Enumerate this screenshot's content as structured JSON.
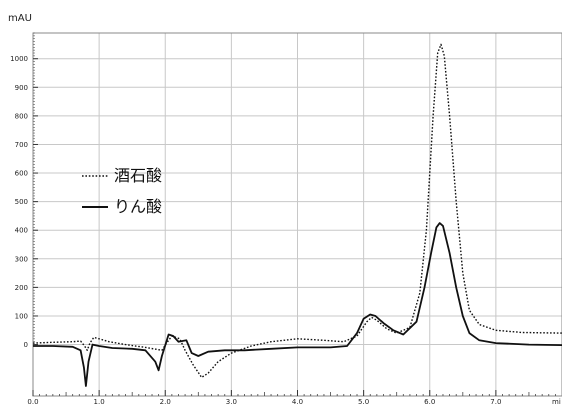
{
  "chart_data": {
    "type": "line",
    "title": "",
    "xlabel": "mi",
    "ylabel": "mAU",
    "xlim": [
      0,
      8
    ],
    "ylim": [
      -180,
      1090
    ],
    "x_ticks": [
      "0.0",
      "1.0",
      "2.0",
      "3.0",
      "4.0",
      "5.0",
      "6.0",
      "7.0"
    ],
    "y_ticks": [
      "0",
      "100",
      "200",
      "300",
      "400",
      "500",
      "600",
      "700",
      "800",
      "900",
      "1000"
    ],
    "grid": true,
    "legend_position": "left-middle",
    "series": [
      {
        "name": "酒石酸",
        "style": "dotted",
        "color": "#111111",
        "points": [
          [
            0,
            5
          ],
          [
            0.3,
            8
          ],
          [
            0.6,
            10
          ],
          [
            0.72,
            12
          ],
          [
            0.78,
            -5
          ],
          [
            0.82,
            -20
          ],
          [
            0.86,
            5
          ],
          [
            0.92,
            25
          ],
          [
            1.0,
            20
          ],
          [
            1.15,
            10
          ],
          [
            1.4,
            0
          ],
          [
            1.7,
            -10
          ],
          [
            1.95,
            -20
          ],
          [
            2.02,
            5
          ],
          [
            2.1,
            30
          ],
          [
            2.22,
            20
          ],
          [
            2.3,
            -20
          ],
          [
            2.42,
            -70
          ],
          [
            2.55,
            -115
          ],
          [
            2.65,
            -100
          ],
          [
            2.8,
            -60
          ],
          [
            3.0,
            -30
          ],
          [
            3.3,
            -5
          ],
          [
            3.6,
            10
          ],
          [
            4.0,
            20
          ],
          [
            4.4,
            15
          ],
          [
            4.7,
            10
          ],
          [
            4.9,
            30
          ],
          [
            5.05,
            80
          ],
          [
            5.12,
            95
          ],
          [
            5.2,
            85
          ],
          [
            5.35,
            55
          ],
          [
            5.5,
            40
          ],
          [
            5.7,
            60
          ],
          [
            5.85,
            180
          ],
          [
            5.95,
            400
          ],
          [
            6.05,
            800
          ],
          [
            6.12,
            1020
          ],
          [
            6.17,
            1050
          ],
          [
            6.22,
            1010
          ],
          [
            6.3,
            800
          ],
          [
            6.4,
            500
          ],
          [
            6.5,
            250
          ],
          [
            6.6,
            120
          ],
          [
            6.75,
            70
          ],
          [
            7.0,
            50
          ],
          [
            7.4,
            42
          ],
          [
            8.0,
            40
          ]
        ]
      },
      {
        "name": "りん酸",
        "style": "solid",
        "color": "#111111",
        "points": [
          [
            0,
            -5
          ],
          [
            0.3,
            -5
          ],
          [
            0.6,
            -8
          ],
          [
            0.72,
            -20
          ],
          [
            0.77,
            -80
          ],
          [
            0.8,
            -145
          ],
          [
            0.84,
            -60
          ],
          [
            0.9,
            0
          ],
          [
            1.0,
            -5
          ],
          [
            1.2,
            -12
          ],
          [
            1.5,
            -15
          ],
          [
            1.7,
            -20
          ],
          [
            1.85,
            -60
          ],
          [
            1.9,
            -90
          ],
          [
            1.95,
            -40
          ],
          [
            2.05,
            35
          ],
          [
            2.12,
            30
          ],
          [
            2.2,
            10
          ],
          [
            2.32,
            15
          ],
          [
            2.4,
            -30
          ],
          [
            2.5,
            -40
          ],
          [
            2.65,
            -25
          ],
          [
            2.9,
            -20
          ],
          [
            3.2,
            -20
          ],
          [
            3.6,
            -15
          ],
          [
            4.0,
            -10
          ],
          [
            4.5,
            -10
          ],
          [
            4.75,
            -5
          ],
          [
            4.9,
            40
          ],
          [
            5.0,
            90
          ],
          [
            5.1,
            105
          ],
          [
            5.18,
            100
          ],
          [
            5.3,
            75
          ],
          [
            5.45,
            50
          ],
          [
            5.6,
            35
          ],
          [
            5.8,
            80
          ],
          [
            5.92,
            200
          ],
          [
            6.02,
            320
          ],
          [
            6.1,
            410
          ],
          [
            6.15,
            425
          ],
          [
            6.2,
            415
          ],
          [
            6.3,
            320
          ],
          [
            6.4,
            200
          ],
          [
            6.5,
            100
          ],
          [
            6.6,
            40
          ],
          [
            6.75,
            15
          ],
          [
            7.0,
            5
          ],
          [
            7.5,
            0
          ],
          [
            8.0,
            -2
          ]
        ]
      }
    ]
  }
}
